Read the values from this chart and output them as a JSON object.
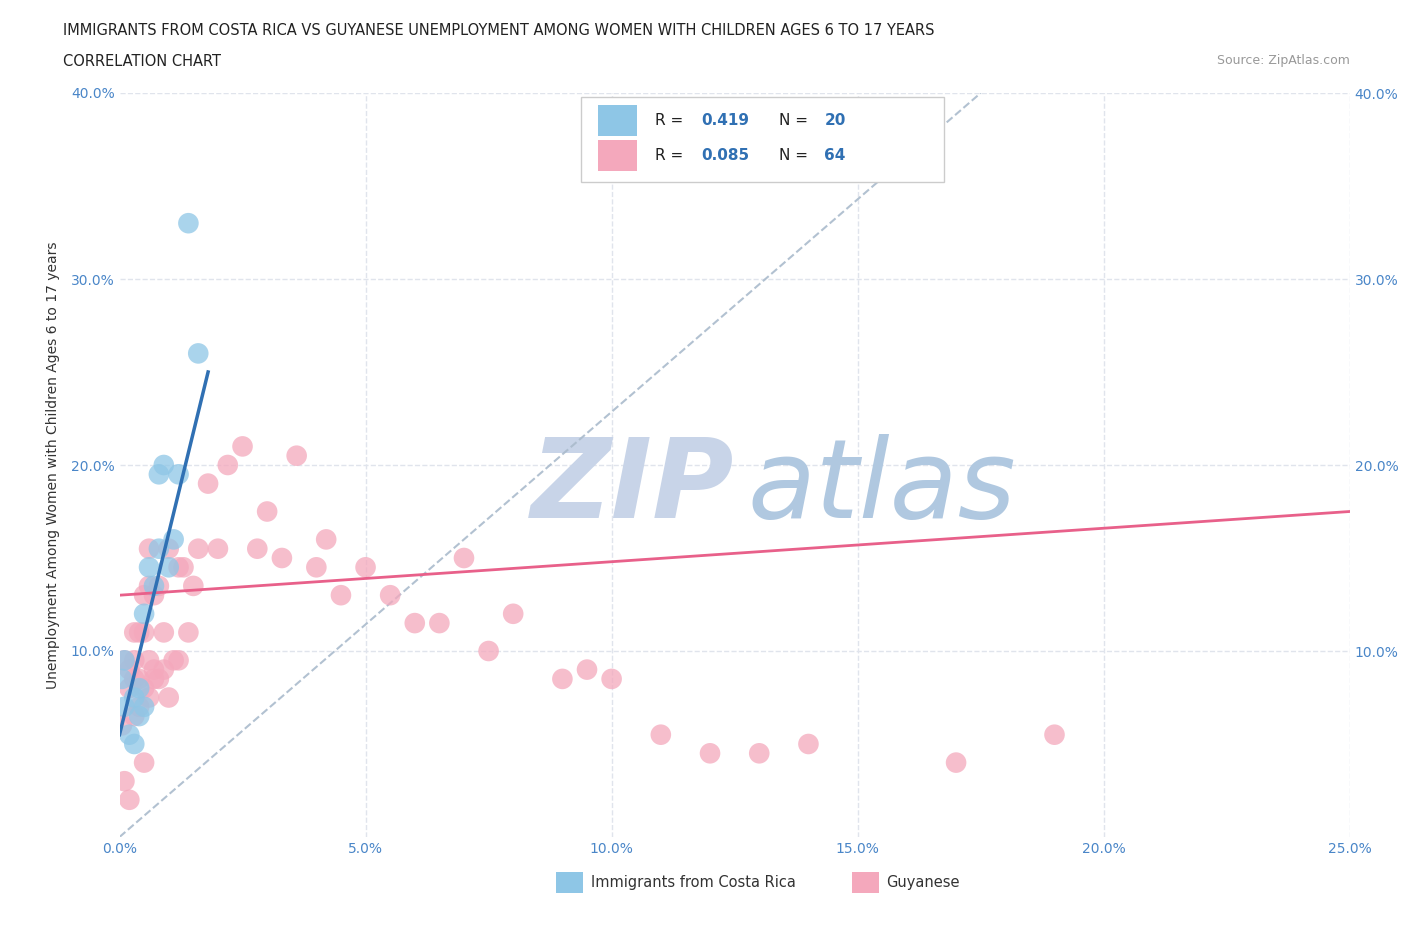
{
  "title_line1": "IMMIGRANTS FROM COSTA RICA VS GUYANESE UNEMPLOYMENT AMONG WOMEN WITH CHILDREN AGES 6 TO 17 YEARS",
  "title_line2": "CORRELATION CHART",
  "source_text": "Source: ZipAtlas.com",
  "xlabel": "Immigrants from Costa Rica",
  "ylabel": "Unemployment Among Women with Children Ages 6 to 17 years",
  "xlim": [
    0,
    0.25
  ],
  "ylim": [
    0,
    0.4
  ],
  "xticks": [
    0.0,
    0.05,
    0.1,
    0.15,
    0.2,
    0.25
  ],
  "xtick_labels": [
    "0.0%",
    "5.0%",
    "10.0%",
    "15.0%",
    "20.0%",
    "25.0%"
  ],
  "yticks": [
    0.0,
    0.1,
    0.2,
    0.3,
    0.4
  ],
  "ytick_labels": [
    "",
    "10.0%",
    "20.0%",
    "30.0%",
    "40.0%"
  ],
  "right_ytick_labels": [
    "",
    "10.0%",
    "20.0%",
    "30.0%",
    "40.0%"
  ],
  "costa_rica_R": 0.419,
  "costa_rica_N": 20,
  "guyanese_R": 0.085,
  "guyanese_N": 64,
  "blue_color": "#8ec6e6",
  "pink_color": "#f4a8bc",
  "blue_line_color": "#3070b3",
  "pink_line_color": "#e8608a",
  "ref_line_color": "#aabbcc",
  "watermark_zip_color": "#c8d4e8",
  "watermark_atlas_color": "#b0c8e0",
  "background_color": "#ffffff",
  "grid_color": "#e0e4ec",
  "costa_rica_x": [
    0.0005,
    0.001,
    0.001,
    0.002,
    0.003,
    0.003,
    0.004,
    0.004,
    0.005,
    0.005,
    0.006,
    0.007,
    0.008,
    0.008,
    0.009,
    0.01,
    0.011,
    0.012,
    0.014,
    0.016
  ],
  "costa_rica_y": [
    0.085,
    0.095,
    0.07,
    0.055,
    0.05,
    0.075,
    0.065,
    0.08,
    0.07,
    0.12,
    0.145,
    0.135,
    0.155,
    0.195,
    0.2,
    0.145,
    0.16,
    0.195,
    0.33,
    0.26
  ],
  "guyanese_x": [
    0.0005,
    0.001,
    0.001,
    0.002,
    0.002,
    0.002,
    0.003,
    0.003,
    0.003,
    0.003,
    0.004,
    0.004,
    0.004,
    0.005,
    0.005,
    0.005,
    0.005,
    0.006,
    0.006,
    0.006,
    0.006,
    0.007,
    0.007,
    0.007,
    0.008,
    0.008,
    0.009,
    0.009,
    0.01,
    0.01,
    0.011,
    0.012,
    0.012,
    0.013,
    0.014,
    0.015,
    0.016,
    0.018,
    0.02,
    0.022,
    0.025,
    0.028,
    0.03,
    0.033,
    0.036,
    0.04,
    0.042,
    0.045,
    0.05,
    0.055,
    0.06,
    0.065,
    0.07,
    0.075,
    0.08,
    0.09,
    0.095,
    0.1,
    0.11,
    0.12,
    0.13,
    0.14,
    0.17,
    0.19
  ],
  "guyanese_y": [
    0.06,
    0.03,
    0.095,
    0.02,
    0.08,
    0.09,
    0.085,
    0.065,
    0.095,
    0.11,
    0.07,
    0.085,
    0.11,
    0.04,
    0.08,
    0.11,
    0.13,
    0.075,
    0.095,
    0.135,
    0.155,
    0.085,
    0.09,
    0.13,
    0.085,
    0.135,
    0.09,
    0.11,
    0.075,
    0.155,
    0.095,
    0.095,
    0.145,
    0.145,
    0.11,
    0.135,
    0.155,
    0.19,
    0.155,
    0.2,
    0.21,
    0.155,
    0.175,
    0.15,
    0.205,
    0.145,
    0.16,
    0.13,
    0.145,
    0.13,
    0.115,
    0.115,
    0.15,
    0.1,
    0.12,
    0.085,
    0.09,
    0.085,
    0.055,
    0.045,
    0.045,
    0.05,
    0.04,
    0.055
  ],
  "blue_trend_x0": 0.0,
  "blue_trend_y0": 0.055,
  "blue_trend_x1": 0.018,
  "blue_trend_y1": 0.25,
  "pink_trend_x0": 0.0,
  "pink_trend_y0": 0.13,
  "pink_trend_x1": 0.25,
  "pink_trend_y1": 0.175,
  "ref_line_x0": 0.0,
  "ref_line_y0": 0.0,
  "ref_line_x1": 0.175,
  "ref_line_y1": 0.4
}
